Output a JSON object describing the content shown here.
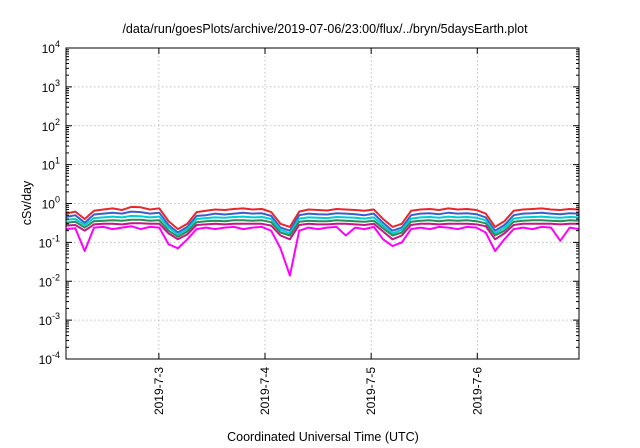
{
  "chart_data": {
    "type": "line",
    "title": "/data/run/goesPlots/archive/2019-07-06/23:00/flux/../bryn/5daysEarth.plot",
    "xlabel": "Coordinated Universal Time (UTC)",
    "ylabel": "cSv/day",
    "yscale": "log",
    "ylim": [
      0.0001,
      10000
    ],
    "xlim": [
      "2019-07-02 03:00",
      "2019-07-06 23:00"
    ],
    "grid": true,
    "y_ticks": [
      {
        "base": "10",
        "exp": "-4"
      },
      {
        "base": "10",
        "exp": "-3"
      },
      {
        "base": "10",
        "exp": "-2"
      },
      {
        "base": "10",
        "exp": "-1"
      },
      {
        "base": "10",
        "exp": "0"
      },
      {
        "base": "10",
        "exp": "1"
      },
      {
        "base": "10",
        "exp": "2"
      },
      {
        "base": "10",
        "exp": "3"
      },
      {
        "base": "10",
        "exp": "4"
      }
    ],
    "x_ticks": [
      "2019-7-3",
      "2019-7-4",
      "2019-7-5",
      "2019-7-6"
    ],
    "series": [
      {
        "color": "#e8262b",
        "values": [
          0.55,
          0.62,
          0.4,
          0.65,
          0.7,
          0.75,
          0.68,
          0.82,
          0.8,
          0.7,
          0.75,
          0.35,
          0.22,
          0.3,
          0.6,
          0.65,
          0.7,
          0.68,
          0.72,
          0.75,
          0.7,
          0.72,
          0.6,
          0.3,
          0.25,
          0.62,
          0.7,
          0.68,
          0.66,
          0.72,
          0.7,
          0.68,
          0.65,
          0.7,
          0.4,
          0.25,
          0.3,
          0.65,
          0.7,
          0.72,
          0.68,
          0.75,
          0.7,
          0.72,
          0.68,
          0.55,
          0.25,
          0.35,
          0.65,
          0.7,
          0.72,
          0.75,
          0.7,
          0.68,
          0.72,
          0.7
        ]
      },
      {
        "color": "#3a5fcd",
        "values": [
          0.45,
          0.5,
          0.32,
          0.52,
          0.55,
          0.58,
          0.55,
          0.62,
          0.6,
          0.55,
          0.58,
          0.28,
          0.18,
          0.25,
          0.48,
          0.5,
          0.55,
          0.52,
          0.55,
          0.58,
          0.55,
          0.56,
          0.48,
          0.24,
          0.2,
          0.5,
          0.55,
          0.53,
          0.52,
          0.56,
          0.55,
          0.53,
          0.5,
          0.55,
          0.32,
          0.2,
          0.24,
          0.5,
          0.55,
          0.56,
          0.53,
          0.58,
          0.55,
          0.56,
          0.53,
          0.44,
          0.2,
          0.28,
          0.5,
          0.55,
          0.56,
          0.58,
          0.55,
          0.53,
          0.56,
          0.55
        ]
      },
      {
        "color": "#00ced1",
        "values": [
          0.38,
          0.4,
          0.28,
          0.42,
          0.44,
          0.46,
          0.44,
          0.48,
          0.47,
          0.44,
          0.46,
          0.24,
          0.16,
          0.22,
          0.4,
          0.42,
          0.44,
          0.43,
          0.45,
          0.46,
          0.44,
          0.45,
          0.4,
          0.21,
          0.17,
          0.41,
          0.44,
          0.43,
          0.42,
          0.45,
          0.44,
          0.43,
          0.41,
          0.44,
          0.27,
          0.17,
          0.21,
          0.41,
          0.44,
          0.45,
          0.43,
          0.46,
          0.44,
          0.45,
          0.43,
          0.37,
          0.17,
          0.24,
          0.41,
          0.44,
          0.45,
          0.46,
          0.44,
          0.43,
          0.45,
          0.44
        ]
      },
      {
        "color": "#2e8b57",
        "values": [
          0.32,
          0.34,
          0.24,
          0.35,
          0.36,
          0.37,
          0.36,
          0.38,
          0.38,
          0.36,
          0.37,
          0.2,
          0.14,
          0.19,
          0.33,
          0.35,
          0.36,
          0.35,
          0.37,
          0.37,
          0.36,
          0.37,
          0.33,
          0.18,
          0.15,
          0.34,
          0.36,
          0.35,
          0.35,
          0.37,
          0.36,
          0.35,
          0.34,
          0.36,
          0.23,
          0.15,
          0.18,
          0.34,
          0.36,
          0.37,
          0.35,
          0.37,
          0.36,
          0.37,
          0.35,
          0.31,
          0.15,
          0.2,
          0.34,
          0.36,
          0.37,
          0.37,
          0.36,
          0.35,
          0.37,
          0.36
        ]
      },
      {
        "color": "#c71585",
        "values": [
          0.27,
          0.28,
          0.2,
          0.29,
          0.3,
          0.3,
          0.29,
          0.31,
          0.31,
          0.3,
          0.3,
          0.17,
          0.12,
          0.16,
          0.28,
          0.29,
          0.3,
          0.29,
          0.3,
          0.3,
          0.3,
          0.3,
          0.27,
          0.15,
          0.12,
          0.28,
          0.3,
          0.29,
          0.29,
          0.3,
          0.3,
          0.29,
          0.28,
          0.3,
          0.19,
          0.12,
          0.15,
          0.28,
          0.3,
          0.3,
          0.29,
          0.3,
          0.3,
          0.3,
          0.29,
          0.26,
          0.12,
          0.17,
          0.28,
          0.3,
          0.3,
          0.3,
          0.3,
          0.29,
          0.3,
          0.3
        ]
      },
      {
        "color": "#ff00ff",
        "values": [
          0.22,
          0.23,
          0.06,
          0.24,
          0.25,
          0.22,
          0.24,
          0.26,
          0.22,
          0.25,
          0.24,
          0.09,
          0.07,
          0.12,
          0.22,
          0.24,
          0.22,
          0.24,
          0.25,
          0.22,
          0.24,
          0.25,
          0.2,
          0.07,
          0.014,
          0.2,
          0.24,
          0.22,
          0.24,
          0.25,
          0.15,
          0.24,
          0.22,
          0.25,
          0.12,
          0.08,
          0.1,
          0.22,
          0.24,
          0.22,
          0.25,
          0.24,
          0.22,
          0.25,
          0.24,
          0.18,
          0.06,
          0.12,
          0.22,
          0.24,
          0.22,
          0.25,
          0.24,
          0.11,
          0.24,
          0.22
        ]
      }
    ]
  }
}
